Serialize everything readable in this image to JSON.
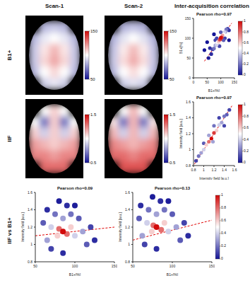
{
  "column_titles": [
    "Scan-1",
    "Scan-2",
    "Inter-acquisition correlation"
  ],
  "row_labels": [
    "B1+",
    "IIF",
    "IIF vs B1+"
  ],
  "chart_data": [
    {
      "type": "heatmap",
      "cells": [
        [
          null,
          85,
          88,
          85,
          null
        ],
        [
          85,
          95,
          100,
          95,
          85
        ],
        [
          88,
          105,
          115,
          105,
          88
        ],
        [
          88,
          108,
          118,
          108,
          88
        ],
        [
          85,
          100,
          108,
          100,
          85
        ],
        [
          null,
          90,
          95,
          90,
          null
        ]
      ],
      "colorbar": {
        "range": [
          50,
          150
        ],
        "ticks": [
          50,
          150
        ]
      }
    },
    {
      "type": "heatmap",
      "cells": [
        [
          null,
          84,
          87,
          84,
          null
        ],
        [
          84,
          94,
          100,
          94,
          84
        ],
        [
          87,
          104,
          114,
          104,
          87
        ],
        [
          88,
          107,
          117,
          107,
          88
        ],
        [
          85,
          100,
          107,
          100,
          85
        ],
        [
          null,
          90,
          94,
          90,
          null
        ]
      ],
      "colorbar": {
        "range": [
          50,
          150
        ],
        "ticks": [
          50,
          150
        ]
      }
    },
    {
      "type": "scatter",
      "title": "Pearson rho=0.97",
      "x_label": "B1+[%]",
      "y_label": "B1+[%]",
      "xlim": [
        0,
        150
      ],
      "xticks": [
        0,
        50,
        100,
        150
      ],
      "ylim": [
        0,
        150
      ],
      "yticks": [
        0,
        50,
        100,
        150
      ],
      "x": [
        40,
        50,
        130,
        75,
        55,
        60,
        65,
        130,
        80,
        95,
        85,
        115,
        125,
        70,
        110,
        100,
        75,
        120,
        80,
        117,
        85,
        113,
        88,
        110,
        92,
        106,
        95,
        98,
        103,
        100
      ],
      "y": [
        70,
        90,
        95,
        110,
        50,
        75,
        60,
        120,
        95,
        80,
        100,
        100,
        124,
        72,
        95,
        115,
        74,
        122,
        82,
        116,
        84,
        115,
        90,
        109,
        91,
        107,
        96,
        97,
        102,
        101
      ],
      "density": [
        0,
        0,
        0,
        0,
        0.02,
        0.05,
        0.05,
        0.05,
        0.1,
        0.1,
        0.1,
        0.1,
        0.1,
        0.1,
        0.15,
        0.15,
        0.2,
        0.2,
        0.3,
        0.3,
        0.4,
        0.4,
        0.5,
        0.5,
        0.6,
        0.7,
        0.8,
        0.9,
        0.9,
        1
      ],
      "fit": {
        "x": [
          40,
          140
        ],
        "y": [
          42,
          138
        ]
      },
      "colorbar": {
        "range": [
          0,
          1
        ],
        "ticks": [
          0,
          0.2,
          0.4,
          0.6,
          0.8,
          1
        ]
      }
    },
    {
      "type": "heatmap",
      "cells": [
        [
          null,
          1.0,
          1.1,
          1.0,
          null
        ],
        [
          1.0,
          0.7,
          1.1,
          0.7,
          1.0
        ],
        [
          1.1,
          0.9,
          1.1,
          0.9,
          1.1
        ],
        [
          1.2,
          1.15,
          1.1,
          1.15,
          1.2
        ],
        [
          1.25,
          1.25,
          1.2,
          1.25,
          1.25
        ],
        [
          null,
          1.3,
          1.3,
          1.3,
          null
        ]
      ],
      "colorbar": {
        "range": [
          0.5,
          1.5
        ],
        "ticks": [
          0.5,
          1.5
        ]
      }
    },
    {
      "type": "heatmap",
      "cells": [
        [
          null,
          1.0,
          1.15,
          1.0,
          null
        ],
        [
          1.05,
          0.7,
          1.15,
          0.7,
          1.05
        ],
        [
          1.15,
          0.9,
          1.15,
          0.9,
          1.15
        ],
        [
          1.25,
          1.2,
          1.15,
          1.2,
          1.25
        ],
        [
          1.3,
          1.3,
          1.25,
          1.3,
          1.3
        ],
        [
          null,
          1.35,
          1.35,
          1.35,
          null
        ]
      ],
      "colorbar": {
        "range": [
          0.5,
          1.5
        ],
        "ticks": [
          0.5,
          1.5
        ]
      }
    },
    {
      "type": "scatter",
      "title": "Pearson rho=0.97",
      "x_label": "Intensity field [a.u.]",
      "y_label": "Intensity field [a.u.]",
      "xlim": [
        0.8,
        1.6
      ],
      "xticks": [
        0.8,
        1,
        1.2,
        1.4,
        1.6
      ],
      "ylim": [
        0.8,
        1.6
      ],
      "yticks": [
        0.8,
        1,
        1.2,
        1.4,
        1.6
      ],
      "x": [
        0.85,
        1.5,
        1.3,
        1.4,
        1.45,
        1.0,
        0.9,
        1.4,
        1.2,
        0.95,
        1.35,
        1.1,
        1.18,
        1.0,
        1.3,
        1.05,
        1.25,
        1.1,
        1.2,
        1.15
      ],
      "y": [
        0.86,
        1.5,
        1.4,
        1.3,
        1.44,
        1.08,
        0.92,
        1.42,
        1.3,
        0.96,
        1.34,
        1.18,
        1.1,
        1.0,
        1.31,
        1.06,
        1.24,
        1.1,
        1.21,
        1.14
      ],
      "density": [
        0.1,
        0.1,
        0.1,
        0.1,
        0.15,
        0.15,
        0.2,
        0.2,
        0.2,
        0.3,
        0.3,
        0.3,
        0.3,
        0.4,
        0.4,
        0.6,
        0.6,
        0.8,
        0.9,
        1
      ],
      "fit": {
        "x": [
          0.82,
          1.55
        ],
        "y": [
          0.82,
          1.55
        ]
      },
      "colorbar": {
        "range": [
          0,
          1
        ],
        "ticks": [
          0,
          0.2,
          0.4,
          0.6,
          0.8,
          1
        ]
      }
    },
    {
      "type": "scatter",
      "title": "Pearson rho=0.09",
      "x_label": "B1+[%]",
      "y_label": "Intensity field [a.u.]",
      "xlim": [
        50,
        150
      ],
      "xticks": [
        50,
        100,
        150
      ],
      "ylim": [
        0.8,
        1.6
      ],
      "yticks": [
        0.8,
        1,
        1.2,
        1.4,
        1.6
      ],
      "x": [
        80,
        100,
        90,
        125,
        65,
        85,
        70,
        120,
        60,
        115,
        105,
        75,
        95,
        65,
        110,
        85,
        70,
        100,
        78,
        95,
        80,
        90,
        85
      ],
      "y": [
        1.5,
        1.45,
        1.45,
        1.05,
        1.4,
        0.9,
        0.95,
        1.2,
        1.25,
        1.0,
        1.3,
        1.35,
        1.35,
        1.05,
        1.15,
        1.3,
        1.2,
        1.1,
        1.1,
        1.2,
        1.18,
        1.12,
        1.15
      ],
      "density": [
        0.02,
        0.02,
        0.05,
        0.05,
        0.05,
        0.05,
        0.1,
        0.1,
        0.15,
        0.15,
        0.15,
        0.2,
        0.2,
        0.3,
        0.3,
        0.3,
        0.4,
        0.4,
        0.6,
        0.6,
        0.8,
        0.8,
        1
      ],
      "fit": {
        "x": [
          50,
          150
        ],
        "y": [
          1.1,
          1.2
        ]
      }
    },
    {
      "type": "scatter",
      "title": "Pearson rho=0.13",
      "x_label": "B1+[%]",
      "y_label": "Intensity field [a.u.]",
      "xlim": [
        50,
        150
      ],
      "xticks": [
        50,
        100,
        150
      ],
      "ylim": [
        0.8,
        1.6
      ],
      "yticks": [
        0.8,
        1,
        1.2,
        1.4,
        1.6
      ],
      "x": [
        75,
        95,
        85,
        120,
        60,
        80,
        65,
        115,
        58,
        110,
        100,
        70,
        90,
        62,
        105,
        80,
        68,
        95,
        74,
        90,
        76,
        86,
        80
      ],
      "y": [
        1.55,
        1.5,
        1.5,
        1.1,
        1.45,
        0.95,
        1.0,
        1.25,
        1.3,
        1.05,
        1.35,
        1.4,
        1.4,
        1.1,
        1.2,
        1.35,
        1.25,
        1.15,
        1.15,
        1.25,
        1.22,
        1.17,
        1.2
      ],
      "density": [
        0.02,
        0.02,
        0.05,
        0.05,
        0.05,
        0.05,
        0.1,
        0.1,
        0.15,
        0.15,
        0.15,
        0.2,
        0.2,
        0.3,
        0.3,
        0.3,
        0.4,
        0.4,
        0.6,
        0.6,
        0.8,
        0.8,
        1
      ],
      "fit": {
        "x": [
          50,
          150
        ],
        "y": [
          1.05,
          1.28
        ]
      },
      "colorbar": {
        "range": [
          0,
          1
        ],
        "ticks": [
          0,
          0.2,
          0.4,
          0.6,
          0.8,
          1
        ]
      }
    }
  ]
}
